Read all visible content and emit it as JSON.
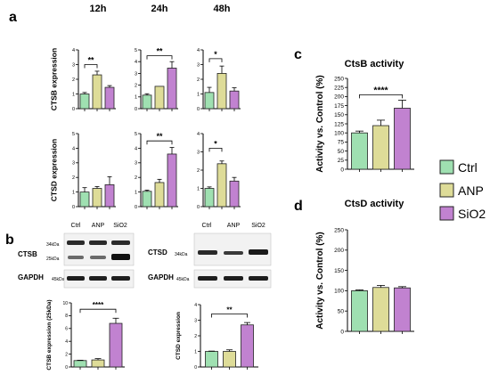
{
  "colors": {
    "ctrl": "#9fe0b1",
    "anp": "#dedc98",
    "sio2": "#c182d0",
    "bar_stroke": "#222222",
    "axis": "#000000",
    "blot_bg": "#f2f2f2",
    "band": "#1a1a1a"
  },
  "legend": {
    "items": [
      {
        "label": "Ctrl",
        "color_key": "ctrl"
      },
      {
        "label": "ANP",
        "color_key": "anp"
      },
      {
        "label": "SiO2",
        "color_key": "sio2"
      }
    ]
  },
  "panel_labels": {
    "a": "a",
    "b": "b",
    "c": "c",
    "d": "d"
  },
  "time_headers": [
    "12h",
    "24h",
    "48h"
  ],
  "blots": {
    "lanes": [
      "Ctrl",
      "ANP",
      "SiO2"
    ],
    "left": {
      "target": "CTSB",
      "loading": "GAPDH",
      "target_kda_top": "34kDa",
      "target_kda_bottom": "25kDa",
      "loading_kda": "45kDa"
    },
    "right": {
      "target": "CTSD",
      "loading": "GAPDH",
      "target_kda": "34kDa",
      "loading_kda": "45kDa"
    }
  },
  "chart_data": [
    {
      "id": "ctsb-12h",
      "type": "bar",
      "panel": "a",
      "ylabel": "CTSB expression",
      "categories": [
        "Ctrl",
        "ANP",
        "SiO2"
      ],
      "values": [
        1.0,
        2.3,
        1.45
      ],
      "errors": [
        0.1,
        0.25,
        0.12
      ],
      "ylim": [
        0,
        4
      ],
      "yticks": [
        0,
        1,
        2,
        3,
        4
      ],
      "significance": [
        {
          "from": 0,
          "to": 1,
          "label": "**",
          "level": 3.0
        }
      ]
    },
    {
      "id": "ctsb-24h",
      "type": "bar",
      "panel": "a",
      "ylabel": "",
      "categories": [
        "Ctrl",
        "ANP",
        "SiO2"
      ],
      "values": [
        1.15,
        1.9,
        3.45
      ],
      "errors": [
        0.12,
        0.0,
        0.55
      ],
      "ylim": [
        0,
        5
      ],
      "yticks": [
        0,
        1,
        2,
        3,
        4,
        5
      ],
      "significance": [
        {
          "from": 0,
          "to": 2,
          "label": "**",
          "level": 4.5
        }
      ]
    },
    {
      "id": "ctsb-48h",
      "type": "bar",
      "panel": "a",
      "ylabel": "",
      "categories": [
        "Ctrl",
        "ANP",
        "SiO2"
      ],
      "values": [
        1.1,
        2.4,
        1.2
      ],
      "errors": [
        0.35,
        0.5,
        0.22
      ],
      "ylim": [
        0,
        4
      ],
      "yticks": [
        0,
        1,
        2,
        3,
        4
      ],
      "significance": [
        {
          "from": 0,
          "to": 1,
          "label": "*",
          "level": 3.4
        }
      ]
    },
    {
      "id": "ctsd-12h",
      "type": "bar",
      "panel": "a",
      "ylabel": "CTSD expression",
      "categories": [
        "Ctrl",
        "ANP",
        "SiO2"
      ],
      "values": [
        1.0,
        1.25,
        1.5
      ],
      "errors": [
        0.3,
        0.12,
        0.55
      ],
      "ylim": [
        0,
        5
      ],
      "yticks": [
        0,
        1,
        2,
        3,
        4,
        5
      ],
      "significance": []
    },
    {
      "id": "ctsd-24h",
      "type": "bar",
      "panel": "a",
      "ylabel": "",
      "categories": [
        "Ctrl",
        "ANP",
        "SiO2"
      ],
      "values": [
        1.05,
        1.65,
        3.6
      ],
      "errors": [
        0.08,
        0.22,
        0.45
      ],
      "ylim": [
        0,
        5
      ],
      "yticks": [
        0,
        1,
        2,
        3,
        4,
        5
      ],
      "significance": [
        {
          "from": 0,
          "to": 2,
          "label": "**",
          "level": 4.5
        }
      ]
    },
    {
      "id": "ctsd-48h",
      "type": "bar",
      "panel": "a",
      "ylabel": "",
      "categories": [
        "Ctrl",
        "ANP",
        "SiO2"
      ],
      "values": [
        1.0,
        2.35,
        1.4
      ],
      "errors": [
        0.08,
        0.15,
        0.2
      ],
      "ylim": [
        0,
        4
      ],
      "yticks": [
        0,
        1,
        2,
        3,
        4
      ],
      "significance": [
        {
          "from": 0,
          "to": 1,
          "label": "*",
          "level": 3.2
        }
      ]
    },
    {
      "id": "ctsb-blot-quant",
      "type": "bar",
      "panel": "b",
      "ylabel": "CTSB expression (25kDa)",
      "categories": [
        "Ctrl",
        "ANP",
        "SiO2"
      ],
      "values": [
        1.0,
        1.1,
        6.8
      ],
      "errors": [
        0.05,
        0.2,
        0.8
      ],
      "ylim": [
        0,
        10
      ],
      "yticks": [
        0,
        2,
        4,
        6,
        8,
        10
      ],
      "significance": [
        {
          "from": 0,
          "to": 2,
          "label": "****",
          "level": 9.0
        }
      ]
    },
    {
      "id": "ctsd-blot-quant",
      "type": "bar",
      "panel": "b",
      "ylabel": "CTSD expression",
      "categories": [
        "Ctrl",
        "ANP",
        "SiO2"
      ],
      "values": [
        1.0,
        1.0,
        2.7
      ],
      "errors": [
        0.02,
        0.1,
        0.15
      ],
      "ylim": [
        0,
        4
      ],
      "yticks": [
        0,
        1,
        2,
        3,
        4
      ],
      "significance": [
        {
          "from": 0,
          "to": 2,
          "label": "**",
          "level": 3.4
        }
      ]
    },
    {
      "id": "ctsb-activity",
      "type": "bar",
      "panel": "c",
      "title": "CtsB activity",
      "ylabel": "Activity vs. Control (%)",
      "categories": [
        "Ctrl",
        "ANP",
        "SiO2"
      ],
      "values": [
        100,
        120,
        168
      ],
      "errors": [
        5,
        15,
        22
      ],
      "ylim": [
        0,
        250
      ],
      "yticks": [
        0,
        25,
        50,
        75,
        100,
        125,
        150,
        175,
        200,
        225,
        250
      ],
      "significance": [
        {
          "from": 0,
          "to": 2,
          "label": "****",
          "level": 205
        }
      ]
    },
    {
      "id": "ctsd-activity",
      "type": "bar",
      "panel": "d",
      "title": "CtsD activity",
      "ylabel": "Activity vs. Control (%)",
      "categories": [
        "Ctrl",
        "ANP",
        "SiO2"
      ],
      "values": [
        100,
        108,
        107
      ],
      "errors": [
        2,
        5,
        3
      ],
      "ylim": [
        0,
        250
      ],
      "yticks": [
        0,
        50,
        100,
        150,
        200,
        250
      ],
      "significance": []
    }
  ]
}
